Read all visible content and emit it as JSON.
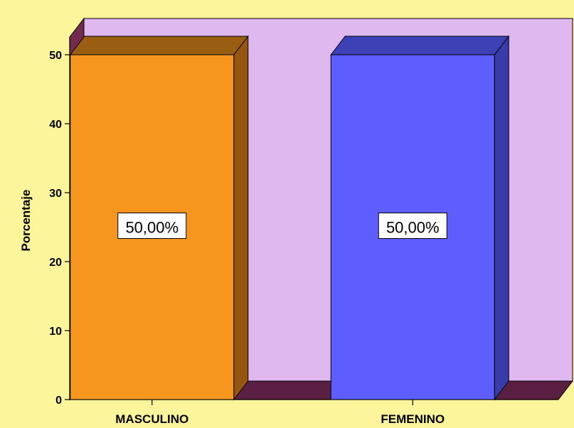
{
  "chart_data": {
    "type": "bar",
    "categories": [
      "MASCULINO",
      "FEMENINO"
    ],
    "values": [
      50,
      50
    ],
    "data_labels": [
      "50,00%",
      "50,00%"
    ],
    "ylabel": "Porcentaje",
    "xlabel": "",
    "ylim": [
      0,
      50
    ],
    "yticks": [
      0,
      10,
      20,
      30,
      40,
      50
    ],
    "ytick_labels": [
      "0",
      "10",
      "20",
      "30",
      "40",
      "50"
    ],
    "grid": false,
    "style": "3d",
    "colors": {
      "page_background": "#fdf59c",
      "back_wall": "#e0b8f0",
      "side_wall": "#722a4d",
      "floor": "#5c1f44",
      "bar_colors": [
        "#f7961e",
        "#5e5eff"
      ],
      "bar_side_colors": [
        "#955710",
        "#383ca8"
      ],
      "bar_top_colors": [
        "#9a5e12",
        "#3d41b5"
      ]
    }
  }
}
